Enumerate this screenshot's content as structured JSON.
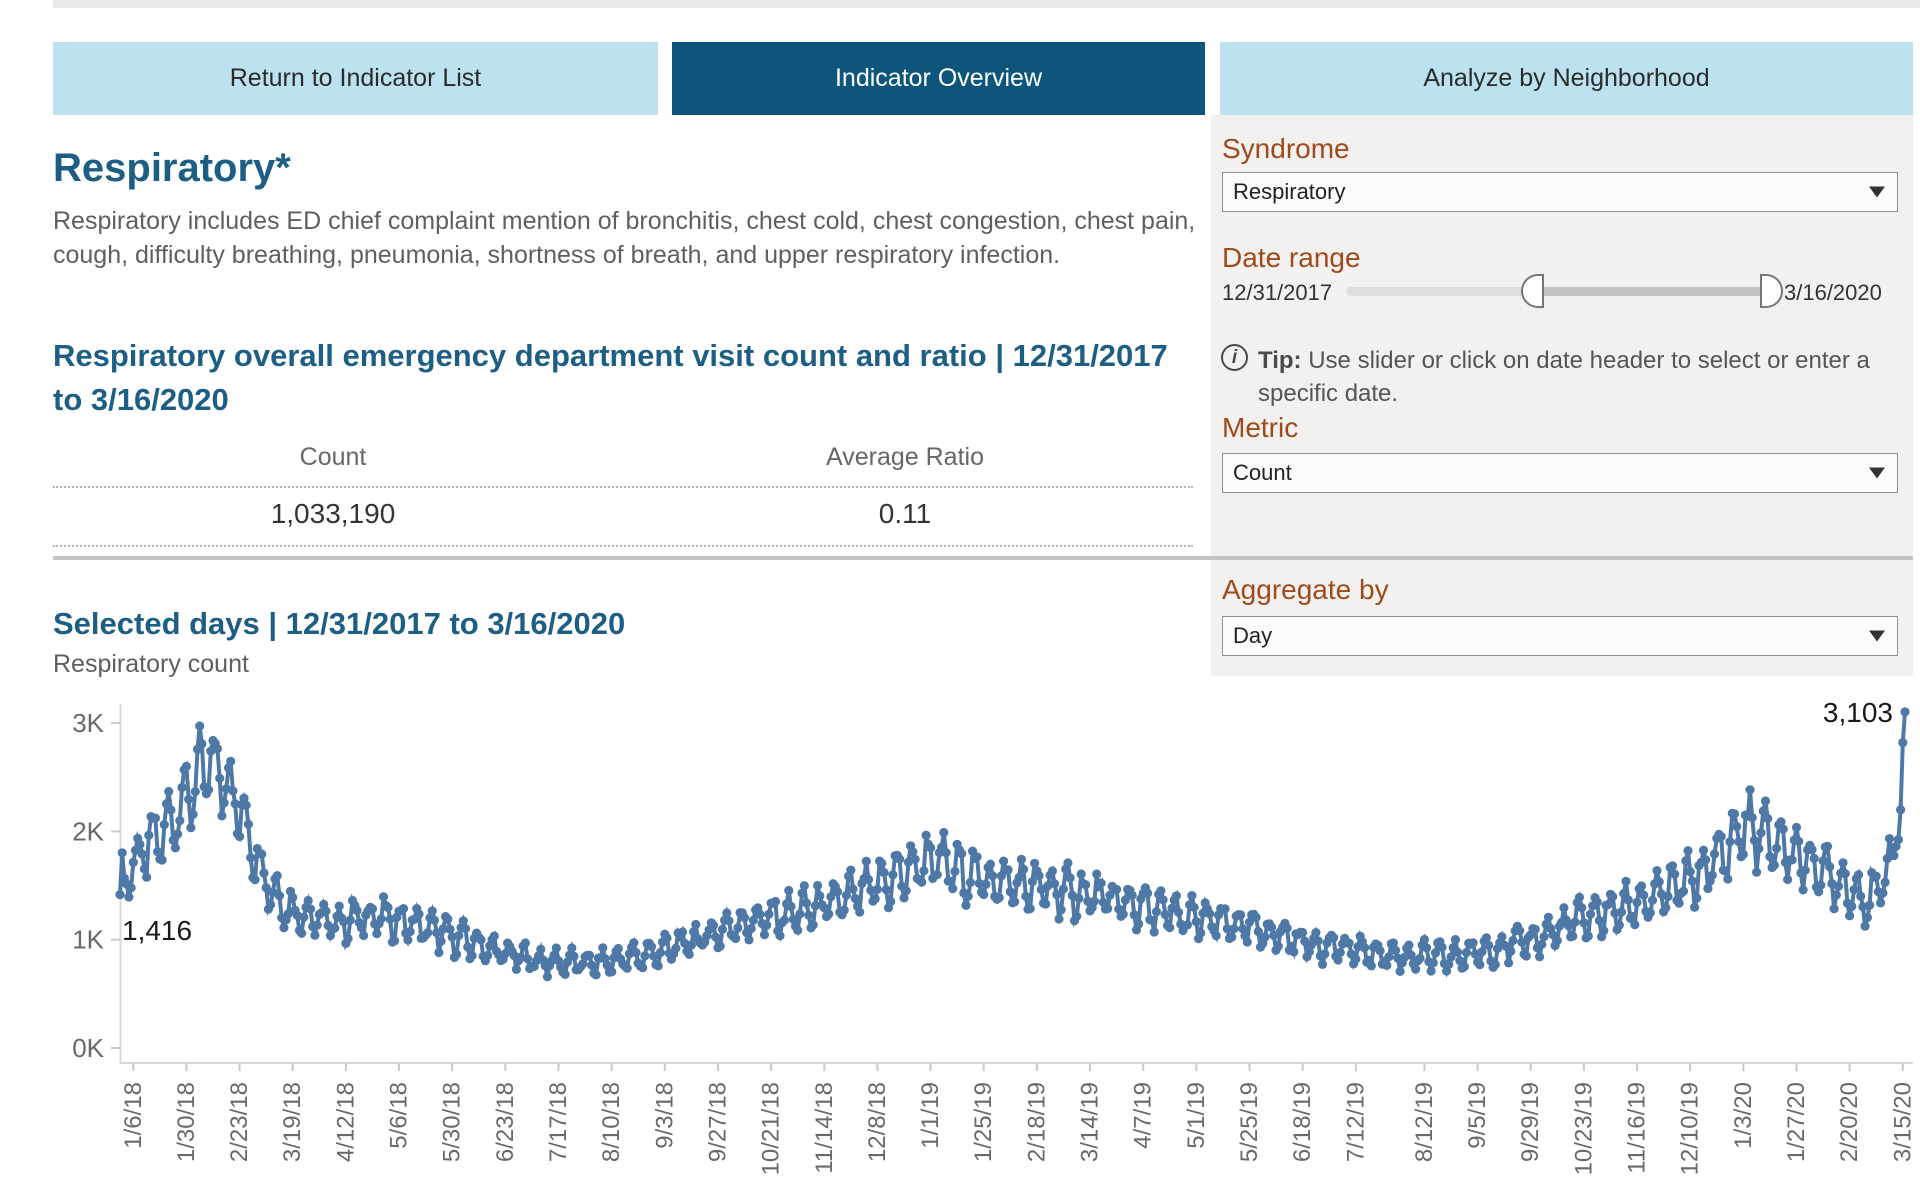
{
  "tabs": [
    {
      "label": "Return to Indicator List",
      "active": false
    },
    {
      "label": "Indicator Overview",
      "active": true
    },
    {
      "label": "Analyze by Neighborhood",
      "active": false
    }
  ],
  "indicator": {
    "title": "Respiratory*",
    "description": "Respiratory includes ED chief complaint mention of bronchitis, chest cold, chest congestion, chest pain, cough, difficulty breathing, pneumonia, shortness of breath, and upper respiratory infection.",
    "summary_heading": "Respiratory overall emergency department visit count and ratio | 12/31/2017 to 3/16/2020",
    "table": {
      "columns": [
        "Count",
        "Average Ratio"
      ],
      "values": [
        "1,033,190",
        "0.11"
      ]
    }
  },
  "sidebar": {
    "syndrome": {
      "label": "Syndrome",
      "value": "Respiratory"
    },
    "date_range": {
      "label": "Date range",
      "start": "12/31/2017",
      "end": "3/16/2020"
    },
    "tip": {
      "icon": "info-icon",
      "bold": "Tip:",
      "text": " Use slider or click on date header to select or enter a specific date."
    },
    "metric": {
      "label": "Metric",
      "value": "Count"
    },
    "aggregate": {
      "label": "Aggregate by",
      "value": "Day"
    }
  },
  "chart_section": {
    "heading": "Selected days | 12/31/2017 to 3/16/2020",
    "subtitle": "Respiratory count"
  },
  "chart_data": {
    "type": "line",
    "title": "Selected days | 12/31/2017 to 3/16/2020",
    "ylabel": "Respiratory count",
    "xlabel": "",
    "x_start_date": "12/31/2017",
    "x_end_date": "3/16/2020",
    "total_points": 807,
    "ylim": [
      0,
      3200
    ],
    "y_ticks": [
      "0K",
      "1K",
      "2K",
      "3K"
    ],
    "grid": false,
    "legend": false,
    "line_color": "#4e79a7",
    "axis_color": "#d8d8d8",
    "tick_color": "#c9c9c9",
    "tick_label_color": "#696969",
    "annotation_color": "#1a1a1a",
    "x_tick_labels": [
      "1/6/18",
      "1/30/18",
      "2/23/18",
      "3/19/18",
      "4/12/18",
      "5/6/18",
      "5/30/18",
      "6/23/18",
      "7/17/18",
      "8/10/18",
      "9/3/18",
      "9/27/18",
      "10/21/18",
      "11/14/18",
      "12/8/18",
      "1/1/19",
      "1/25/19",
      "2/18/19",
      "3/14/19",
      "4/7/19",
      "5/1/19",
      "5/25/19",
      "6/18/19",
      "7/12/19",
      "8/12/19",
      "9/5/19",
      "9/29/19",
      "10/23/19",
      "11/16/19",
      "12/10/19",
      "1/3/20",
      "1/27/20",
      "2/20/20",
      "3/15/20"
    ],
    "x_tick_days": [
      6,
      30,
      54,
      78,
      102,
      126,
      150,
      174,
      198,
      222,
      246,
      270,
      294,
      318,
      342,
      366,
      390,
      414,
      438,
      462,
      486,
      510,
      534,
      558,
      589,
      613,
      637,
      661,
      685,
      709,
      733,
      757,
      781,
      805
    ],
    "first_point": {
      "label": "1,416",
      "value": 1416
    },
    "last_point": {
      "label": "3,103",
      "value": 3103
    },
    "anchor_points": [
      [
        0,
        1500
      ],
      [
        8,
        1750
      ],
      [
        20,
        2000
      ],
      [
        32,
        2400
      ],
      [
        40,
        2620
      ],
      [
        48,
        2500
      ],
      [
        58,
        2000
      ],
      [
        66,
        1550
      ],
      [
        75,
        1300
      ],
      [
        95,
        1150
      ],
      [
        115,
        1220
      ],
      [
        135,
        1130
      ],
      [
        155,
        1000
      ],
      [
        172,
        880
      ],
      [
        190,
        800
      ],
      [
        215,
        780
      ],
      [
        240,
        870
      ],
      [
        260,
        1000
      ],
      [
        280,
        1150
      ],
      [
        300,
        1230
      ],
      [
        320,
        1320
      ],
      [
        340,
        1480
      ],
      [
        356,
        1640
      ],
      [
        366,
        1750
      ],
      [
        380,
        1620
      ],
      [
        400,
        1520
      ],
      [
        420,
        1470
      ],
      [
        440,
        1400
      ],
      [
        460,
        1310
      ],
      [
        480,
        1210
      ],
      [
        500,
        1150
      ],
      [
        520,
        1060
      ],
      [
        540,
        960
      ],
      [
        560,
        890
      ],
      [
        580,
        850
      ],
      [
        600,
        840
      ],
      [
        620,
        910
      ],
      [
        640,
        1010
      ],
      [
        660,
        1190
      ],
      [
        680,
        1300
      ],
      [
        700,
        1450
      ],
      [
        715,
        1620
      ],
      [
        726,
        1850
      ],
      [
        733,
        2060
      ],
      [
        742,
        1950
      ],
      [
        755,
        1820
      ],
      [
        768,
        1650
      ],
      [
        781,
        1480
      ],
      [
        789,
        1360
      ],
      [
        794,
        1450
      ],
      [
        799,
        1700
      ],
      [
        802,
        2000
      ],
      [
        804,
        2250
      ],
      [
        806,
        2900
      ]
    ],
    "weekly_wave": {
      "period": 7,
      "fraction": 0.13,
      "phase": 0.9,
      "noise_fraction": 0.06
    }
  }
}
